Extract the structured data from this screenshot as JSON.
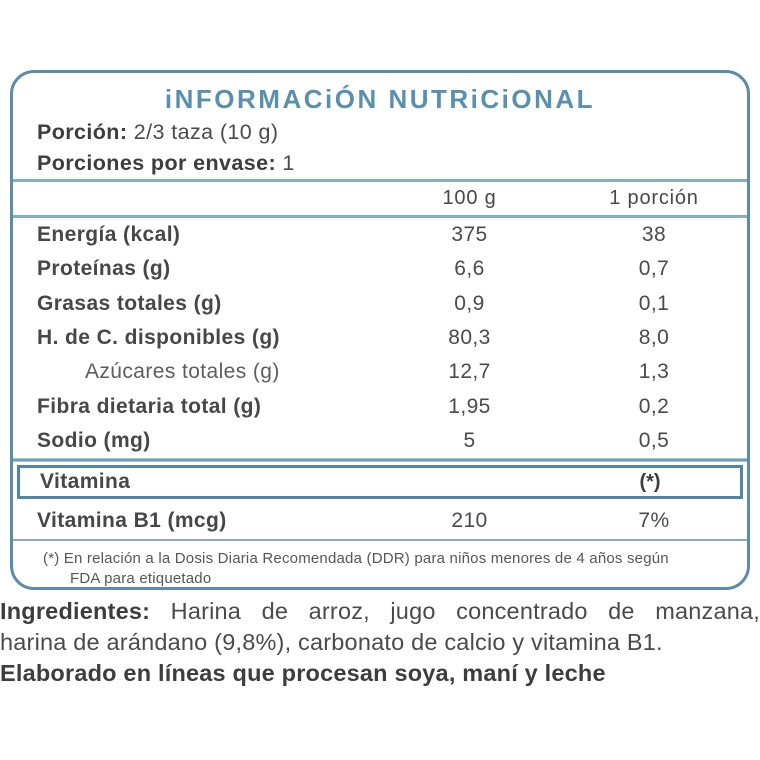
{
  "panel": {
    "title": "iNFORMACiÓN NUTRiCiONAL",
    "serving": {
      "label": "Porción:",
      "value": " 2/3 taza  (10 g)"
    },
    "servings_per_pack": {
      "label": "Porciones por envase:",
      "value": " 1"
    },
    "columns": {
      "per_100g": "100 g",
      "per_serving": "1 porción"
    },
    "rows": [
      {
        "label": "Energía (kcal)",
        "per100": "375",
        "perserv": "38",
        "indent": false
      },
      {
        "label": "Proteínas (g)",
        "per100": "6,6",
        "perserv": "0,7",
        "indent": false
      },
      {
        "label": "Grasas totales (g)",
        "per100": "0,9",
        "perserv": "0,1",
        "indent": false
      },
      {
        "label": "H. de C. disponibles (g)",
        "per100": "80,3",
        "perserv": "8,0",
        "indent": false
      },
      {
        "label": "Azúcares totales (g)",
        "per100": "12,7",
        "perserv": "1,3",
        "indent": true
      },
      {
        "label": "Fibra dietaria total (g)",
        "per100": "1,95",
        "perserv": "0,2",
        "indent": false
      },
      {
        "label": "Sodio (mg)",
        "per100": "5",
        "perserv": "0,5",
        "indent": false
      }
    ],
    "vitamin_header": {
      "label": "Vitamina",
      "note": "(*)"
    },
    "vitamin_row": {
      "label": "Vitamina B1 (mcg)",
      "per100": "210",
      "perserv": "7%"
    },
    "footnote": {
      "line1": "(*) En relación a la Dosis Diaria Recomendada (DDR) para niños menores de 4 años según",
      "line2": "FDA para etiquetado"
    }
  },
  "ingredients": {
    "label": "Ingredientes:",
    "line1_rest": " Harina de arroz, jugo concentrado de manzana,",
    "line2": "harina de arándano (9,8%), carbonato de calcio y vitamina B1.",
    "allergen": "Elaborado en líneas que procesan soya, maní y leche"
  },
  "colors": {
    "accent_border": "#5d8ca8",
    "title_text": "#5890ae",
    "rule_light": "#84aec3",
    "rule_thick": "#6f9fb6",
    "body_text": "#4a4a4a"
  }
}
